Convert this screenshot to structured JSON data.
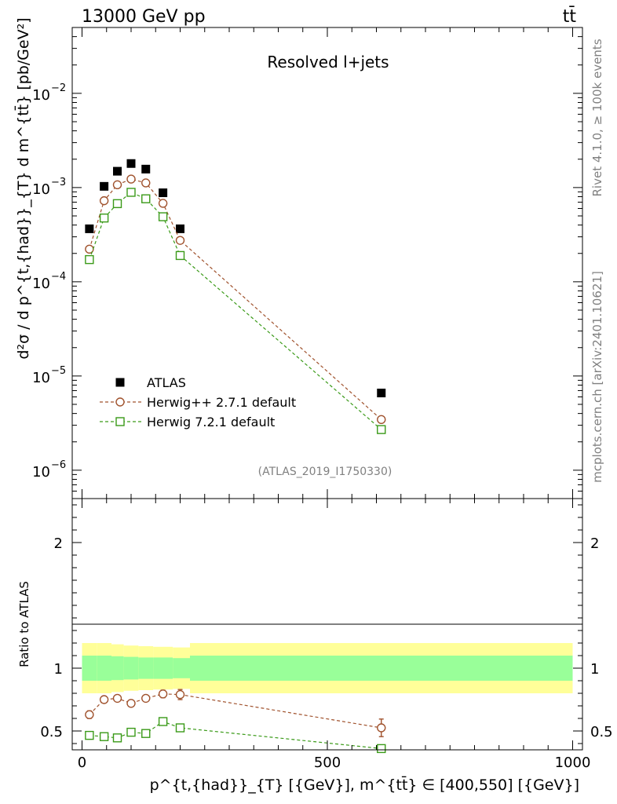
{
  "header": {
    "energy_label": "13000 GeV pp",
    "process_label": "tt̄"
  },
  "side_labels": {
    "rivet": "Rivet 4.1.0, ≥ 100k events",
    "mcplots": "mcplots.cern.ch [arXiv:2401.10621]"
  },
  "colors": {
    "data": "#000000",
    "herwig_pp": "#a0522d",
    "herwig7": "#3a9a18",
    "band_outer": "#ffff99",
    "band_inner": "#99ff99"
  },
  "chart_data": [
    {
      "type": "scatter",
      "panel": "main",
      "title": "Resolved l+jets",
      "watermark": "(ATLAS_2019_I1750330)",
      "ylabel": "d²σ / d p^{t,{had}}_{T} d m^{tt̄} [pb/GeV²]",
      "yscale": "log",
      "ylim": [
        5e-07,
        0.05
      ],
      "xlim": [
        -20,
        1020
      ],
      "ytick_labels": [
        "10^{-6}",
        "10^{-5}",
        "10^{-4}",
        "10^{-3}",
        "10^{-2}"
      ],
      "legend_position": "bottom-left",
      "series": [
        {
          "name": "ATLAS",
          "marker": "filled-square",
          "x": [
            15,
            45,
            72,
            100,
            130,
            165,
            200,
            610
          ],
          "y": [
            0.000365,
            0.00103,
            0.00149,
            0.0018,
            0.00157,
            0.00088,
            0.000365,
            6.6e-06
          ]
        },
        {
          "name": "Herwig++ 2.7.1 default",
          "marker": "open-circle",
          "x": [
            15,
            45,
            72,
            100,
            130,
            165,
            200,
            610
          ],
          "y": [
            0.000222,
            0.000725,
            0.00107,
            0.00123,
            0.00112,
            0.00068,
            0.000275,
            3.45e-06
          ]
        },
        {
          "name": "Herwig 7.2.1 default",
          "marker": "open-square",
          "x": [
            15,
            45,
            72,
            100,
            130,
            165,
            200,
            610
          ],
          "y": [
            0.000172,
            0.000475,
            0.000675,
            0.00089,
            0.00076,
            0.00049,
            0.00019,
            2.7e-06
          ]
        }
      ]
    },
    {
      "type": "scatter",
      "panel": "ratio",
      "ylabel": "Ratio to ATLAS",
      "xlabel": "p^{t,{had}}_{T} [{GeV}], m^{tt̄} ∈ [400,550] [{GeV}]",
      "ylim": [
        0.35,
        2.35
      ],
      "xlim": [
        -20,
        1020
      ],
      "xticks": [
        0,
        500,
        1000
      ],
      "yticks": [
        0.5,
        1,
        2
      ],
      "bands": {
        "edges": [
          0,
          30,
          60,
          85,
          115,
          145,
          185,
          220,
          1000
        ],
        "outer_low": [
          0.8,
          0.8,
          0.81,
          0.82,
          0.825,
          0.83,
          0.835,
          0.8
        ],
        "outer_high": [
          1.2,
          1.2,
          1.19,
          1.18,
          1.175,
          1.17,
          1.165,
          1.2
        ],
        "inner_low": [
          0.9,
          0.9,
          0.905,
          0.91,
          0.915,
          0.915,
          0.92,
          0.9
        ],
        "inner_high": [
          1.1,
          1.1,
          1.095,
          1.09,
          1.085,
          1.085,
          1.08,
          1.1
        ]
      },
      "series": [
        {
          "name": "Herwig++ 2.7.1 default",
          "x": [
            15,
            45,
            72,
            100,
            130,
            165,
            200,
            610
          ],
          "y": [
            0.63,
            0.75,
            0.76,
            0.72,
            0.76,
            0.795,
            0.79,
            0.525
          ],
          "err": [
            0.03,
            0.025,
            0.025,
            0.025,
            0.02,
            0.03,
            0.04,
            0.07
          ]
        },
        {
          "name": "Herwig 7.2.1 default",
          "x": [
            15,
            45,
            72,
            100,
            130,
            165,
            200,
            610
          ],
          "y": [
            0.465,
            0.455,
            0.445,
            0.49,
            0.48,
            0.575,
            0.525,
            0.36
          ],
          "err": [
            0.03,
            0.025,
            0.025,
            0.02,
            0.02,
            0.03,
            0.03,
            0.02
          ]
        }
      ]
    }
  ]
}
